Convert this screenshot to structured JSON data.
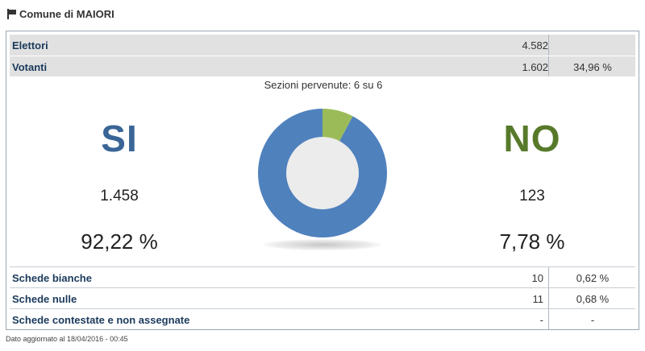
{
  "header": {
    "title": "Comune di MAIORI",
    "icon": "flag-icon"
  },
  "stats": {
    "elettori": {
      "label": "Elettori",
      "value": "4.582"
    },
    "votanti": {
      "label": "Votanti",
      "value": "1.602",
      "percent": "34,96 %"
    }
  },
  "sezioni": "Sezioni pervenute: 6 su 6",
  "results": {
    "si": {
      "label": "SI",
      "votes": "1.458",
      "percent": "92,22 %",
      "color": "#3a6596"
    },
    "no": {
      "label": "NO",
      "votes": "123",
      "percent": "7,78 %",
      "color": "#577a2a"
    }
  },
  "chart_data": {
    "type": "pie",
    "categories": [
      "SI",
      "NO"
    ],
    "values": [
      92.22,
      7.78
    ],
    "colors": [
      "#4f81bd",
      "#9bbb59"
    ]
  },
  "schede": [
    {
      "label": "Schede bianche",
      "value": "10",
      "percent": "0,62 %"
    },
    {
      "label": "Schede nulle",
      "value": "11",
      "percent": "0,68 %"
    },
    {
      "label": "Schede contestate e non assegnate",
      "value": "-",
      "percent": "-"
    }
  ],
  "footer": "Dato aggiornato al 18/04/2016 - 00:45"
}
